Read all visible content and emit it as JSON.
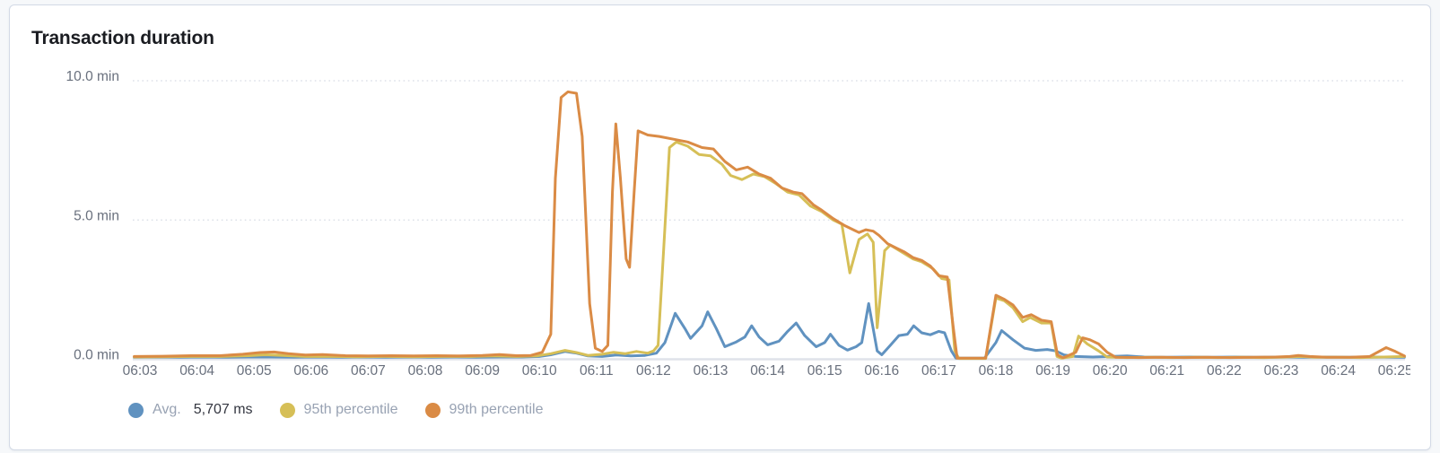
{
  "card": {
    "title": "Transaction duration"
  },
  "legend": {
    "avg_label": "Avg.",
    "avg_value": "5,707 ms",
    "p95_label": "95th percentile",
    "p99_label": "99th percentile"
  },
  "chart_data": {
    "type": "line",
    "title": "Transaction duration",
    "grid": "horizontal dotted gridlines at 5.0 and 10.0 min, solid baseline at 0.0 min",
    "legend_position": "bottom-left",
    "x_axis": {
      "unit": "time (HH:MM)",
      "tick_labels": [
        "06:03",
        "06:04",
        "06:05",
        "06:06",
        "06:07",
        "06:08",
        "06:09",
        "06:10",
        "06:11",
        "06:12",
        "06:13",
        "06:14",
        "06:15",
        "06:16",
        "06:17",
        "06:18",
        "06:19",
        "06:20",
        "06:21",
        "06:22",
        "06:23",
        "06:24",
        "06:25"
      ],
      "last_label_clipped": true
    },
    "y_axis": {
      "unit": "min",
      "tick_values": [
        0,
        5,
        10
      ],
      "tick_labels": [
        "0.0 min",
        "5.0 min",
        "10.0 min"
      ],
      "range": [
        0,
        10
      ]
    },
    "point_time_unit": "minutes after 06:03",
    "series": [
      {
        "name": "Avg.",
        "value_label": "5,707 ms",
        "color": "#6092C0",
        "points": [
          [
            -0.1,
            0.07
          ],
          [
            0.3,
            0.08
          ],
          [
            0.7,
            0.07
          ],
          [
            1.1,
            0.08
          ],
          [
            1.5,
            0.07
          ],
          [
            1.9,
            0.08
          ],
          [
            2.3,
            0.08
          ],
          [
            2.7,
            0.07
          ],
          [
            3.1,
            0.08
          ],
          [
            3.5,
            0.07
          ],
          [
            3.9,
            0.08
          ],
          [
            4.3,
            0.07
          ],
          [
            4.7,
            0.08
          ],
          [
            5.1,
            0.07
          ],
          [
            5.5,
            0.08
          ],
          [
            5.9,
            0.07
          ],
          [
            6.3,
            0.08
          ],
          [
            6.7,
            0.08
          ],
          [
            7.0,
            0.1
          ],
          [
            7.2,
            0.16
          ],
          [
            7.45,
            0.28
          ],
          [
            7.65,
            0.22
          ],
          [
            7.85,
            0.12
          ],
          [
            8.1,
            0.1
          ],
          [
            8.35,
            0.15
          ],
          [
            8.6,
            0.12
          ],
          [
            8.85,
            0.14
          ],
          [
            9.05,
            0.22
          ],
          [
            9.2,
            0.6
          ],
          [
            9.38,
            1.65
          ],
          [
            9.55,
            1.1
          ],
          [
            9.65,
            0.75
          ],
          [
            9.85,
            1.2
          ],
          [
            9.95,
            1.7
          ],
          [
            10.1,
            1.1
          ],
          [
            10.25,
            0.45
          ],
          [
            10.45,
            0.62
          ],
          [
            10.6,
            0.8
          ],
          [
            10.72,
            1.2
          ],
          [
            10.85,
            0.8
          ],
          [
            11.0,
            0.52
          ],
          [
            11.2,
            0.65
          ],
          [
            11.35,
            1.0
          ],
          [
            11.5,
            1.3
          ],
          [
            11.65,
            0.85
          ],
          [
            11.85,
            0.45
          ],
          [
            12.0,
            0.6
          ],
          [
            12.1,
            0.9
          ],
          [
            12.25,
            0.5
          ],
          [
            12.4,
            0.33
          ],
          [
            12.55,
            0.45
          ],
          [
            12.65,
            0.6
          ],
          [
            12.77,
            2.0
          ],
          [
            12.92,
            0.3
          ],
          [
            13.0,
            0.16
          ],
          [
            13.15,
            0.5
          ],
          [
            13.3,
            0.85
          ],
          [
            13.45,
            0.9
          ],
          [
            13.56,
            1.2
          ],
          [
            13.7,
            0.95
          ],
          [
            13.85,
            0.88
          ],
          [
            14.0,
            1.0
          ],
          [
            14.1,
            0.95
          ],
          [
            14.22,
            0.3
          ],
          [
            14.3,
            0.04
          ],
          [
            14.8,
            0.04
          ],
          [
            15.0,
            0.6
          ],
          [
            15.1,
            1.03
          ],
          [
            15.3,
            0.7
          ],
          [
            15.5,
            0.4
          ],
          [
            15.7,
            0.32
          ],
          [
            15.9,
            0.35
          ],
          [
            16.05,
            0.3
          ],
          [
            16.2,
            0.15
          ],
          [
            16.4,
            0.1
          ],
          [
            16.7,
            0.08
          ],
          [
            17.0,
            0.1
          ],
          [
            17.3,
            0.12
          ],
          [
            17.6,
            0.08
          ],
          [
            18.0,
            0.07
          ],
          [
            18.4,
            0.08
          ],
          [
            18.8,
            0.07
          ],
          [
            19.2,
            0.08
          ],
          [
            19.6,
            0.07
          ],
          [
            20.0,
            0.08
          ],
          [
            20.4,
            0.07
          ],
          [
            20.8,
            0.08
          ],
          [
            21.2,
            0.07
          ],
          [
            21.6,
            0.08
          ],
          [
            22.0,
            0.07
          ],
          [
            22.16,
            0.07
          ]
        ]
      },
      {
        "name": "95th percentile",
        "color": "#D6BF57",
        "points": [
          [
            -0.1,
            0.08
          ],
          [
            0.4,
            0.09
          ],
          [
            0.9,
            0.1
          ],
          [
            1.4,
            0.1
          ],
          [
            1.9,
            0.13
          ],
          [
            2.2,
            0.16
          ],
          [
            2.5,
            0.14
          ],
          [
            2.9,
            0.1
          ],
          [
            3.3,
            0.1
          ],
          [
            3.8,
            0.09
          ],
          [
            4.3,
            0.1
          ],
          [
            4.8,
            0.09
          ],
          [
            5.3,
            0.1
          ],
          [
            5.8,
            0.1
          ],
          [
            6.2,
            0.12
          ],
          [
            6.6,
            0.1
          ],
          [
            6.95,
            0.12
          ],
          [
            7.2,
            0.2
          ],
          [
            7.45,
            0.32
          ],
          [
            7.65,
            0.24
          ],
          [
            7.85,
            0.14
          ],
          [
            8.1,
            0.18
          ],
          [
            8.3,
            0.25
          ],
          [
            8.5,
            0.2
          ],
          [
            8.7,
            0.28
          ],
          [
            8.9,
            0.22
          ],
          [
            9.0,
            0.3
          ],
          [
            9.08,
            0.5
          ],
          [
            9.18,
            4.0
          ],
          [
            9.28,
            7.6
          ],
          [
            9.4,
            7.8
          ],
          [
            9.6,
            7.65
          ],
          [
            9.8,
            7.35
          ],
          [
            10.0,
            7.3
          ],
          [
            10.2,
            7.0
          ],
          [
            10.35,
            6.6
          ],
          [
            10.55,
            6.45
          ],
          [
            10.75,
            6.65
          ],
          [
            10.95,
            6.55
          ],
          [
            11.15,
            6.3
          ],
          [
            11.35,
            6.0
          ],
          [
            11.55,
            5.9
          ],
          [
            11.75,
            5.5
          ],
          [
            11.95,
            5.3
          ],
          [
            12.15,
            5.0
          ],
          [
            12.3,
            4.85
          ],
          [
            12.44,
            3.1
          ],
          [
            12.6,
            4.3
          ],
          [
            12.75,
            4.5
          ],
          [
            12.85,
            4.2
          ],
          [
            12.92,
            1.13
          ],
          [
            13.05,
            3.9
          ],
          [
            13.15,
            4.1
          ],
          [
            13.35,
            3.85
          ],
          [
            13.55,
            3.6
          ],
          [
            13.7,
            3.5
          ],
          [
            13.9,
            3.25
          ],
          [
            14.05,
            2.9
          ],
          [
            14.18,
            2.85
          ],
          [
            14.28,
            0.3
          ],
          [
            14.35,
            0.03
          ],
          [
            14.82,
            0.03
          ],
          [
            15.0,
            2.2
          ],
          [
            15.15,
            2.1
          ],
          [
            15.3,
            1.85
          ],
          [
            15.47,
            1.35
          ],
          [
            15.6,
            1.5
          ],
          [
            15.8,
            1.3
          ],
          [
            15.97,
            1.3
          ],
          [
            16.07,
            0.1
          ],
          [
            16.15,
            0.04
          ],
          [
            16.35,
            0.1
          ],
          [
            16.45,
            0.83
          ],
          [
            16.6,
            0.55
          ],
          [
            16.8,
            0.3
          ],
          [
            16.95,
            0.08
          ],
          [
            17.3,
            0.06
          ],
          [
            17.7,
            0.07
          ],
          [
            18.1,
            0.06
          ],
          [
            18.5,
            0.07
          ],
          [
            18.9,
            0.06
          ],
          [
            19.3,
            0.07
          ],
          [
            19.7,
            0.06
          ],
          [
            20.1,
            0.08
          ],
          [
            20.35,
            0.1
          ],
          [
            20.6,
            0.07
          ],
          [
            21.0,
            0.07
          ],
          [
            21.4,
            0.06
          ],
          [
            21.8,
            0.08
          ],
          [
            22.16,
            0.1
          ]
        ]
      },
      {
        "name": "99th percentile",
        "color": "#DA8B45",
        "points": [
          [
            -0.1,
            0.1
          ],
          [
            0.4,
            0.11
          ],
          [
            0.9,
            0.13
          ],
          [
            1.4,
            0.13
          ],
          [
            1.8,
            0.18
          ],
          [
            2.1,
            0.24
          ],
          [
            2.35,
            0.26
          ],
          [
            2.6,
            0.2
          ],
          [
            2.9,
            0.15
          ],
          [
            3.2,
            0.17
          ],
          [
            3.6,
            0.13
          ],
          [
            4.0,
            0.12
          ],
          [
            4.4,
            0.13
          ],
          [
            4.8,
            0.12
          ],
          [
            5.2,
            0.13
          ],
          [
            5.6,
            0.12
          ],
          [
            6.0,
            0.14
          ],
          [
            6.3,
            0.17
          ],
          [
            6.6,
            0.13
          ],
          [
            6.85,
            0.14
          ],
          [
            7.05,
            0.25
          ],
          [
            7.2,
            0.9
          ],
          [
            7.28,
            6.5
          ],
          [
            7.38,
            9.4
          ],
          [
            7.5,
            9.6
          ],
          [
            7.65,
            9.55
          ],
          [
            7.75,
            8.0
          ],
          [
            7.88,
            2.0
          ],
          [
            7.98,
            0.4
          ],
          [
            8.1,
            0.28
          ],
          [
            8.2,
            0.5
          ],
          [
            8.28,
            6.0
          ],
          [
            8.34,
            8.45
          ],
          [
            8.42,
            6.5
          ],
          [
            8.52,
            3.6
          ],
          [
            8.58,
            3.3
          ],
          [
            8.66,
            6.0
          ],
          [
            8.73,
            8.2
          ],
          [
            8.9,
            8.05
          ],
          [
            9.1,
            8.0
          ],
          [
            9.35,
            7.9
          ],
          [
            9.6,
            7.8
          ],
          [
            9.85,
            7.6
          ],
          [
            10.05,
            7.55
          ],
          [
            10.25,
            7.1
          ],
          [
            10.45,
            6.8
          ],
          [
            10.65,
            6.9
          ],
          [
            10.85,
            6.65
          ],
          [
            11.05,
            6.5
          ],
          [
            11.25,
            6.15
          ],
          [
            11.45,
            6.0
          ],
          [
            11.6,
            5.95
          ],
          [
            11.8,
            5.55
          ],
          [
            11.95,
            5.35
          ],
          [
            12.15,
            5.05
          ],
          [
            12.35,
            4.8
          ],
          [
            12.5,
            4.65
          ],
          [
            12.6,
            4.55
          ],
          [
            12.72,
            4.65
          ],
          [
            12.85,
            4.6
          ],
          [
            12.95,
            4.45
          ],
          [
            13.1,
            4.15
          ],
          [
            13.25,
            4.0
          ],
          [
            13.4,
            3.85
          ],
          [
            13.55,
            3.65
          ],
          [
            13.7,
            3.55
          ],
          [
            13.85,
            3.35
          ],
          [
            14.0,
            3.0
          ],
          [
            14.15,
            2.95
          ],
          [
            14.25,
            1.2
          ],
          [
            14.32,
            0.04
          ],
          [
            14.82,
            0.04
          ],
          [
            15.0,
            2.3
          ],
          [
            15.15,
            2.15
          ],
          [
            15.3,
            1.95
          ],
          [
            15.47,
            1.5
          ],
          [
            15.62,
            1.6
          ],
          [
            15.8,
            1.4
          ],
          [
            15.97,
            1.35
          ],
          [
            16.08,
            0.15
          ],
          [
            16.18,
            0.05
          ],
          [
            16.4,
            0.25
          ],
          [
            16.52,
            0.77
          ],
          [
            16.65,
            0.7
          ],
          [
            16.8,
            0.55
          ],
          [
            16.95,
            0.25
          ],
          [
            17.1,
            0.07
          ],
          [
            17.5,
            0.06
          ],
          [
            17.9,
            0.07
          ],
          [
            18.3,
            0.06
          ],
          [
            18.7,
            0.07
          ],
          [
            19.1,
            0.06
          ],
          [
            19.5,
            0.07
          ],
          [
            19.9,
            0.08
          ],
          [
            20.15,
            0.1
          ],
          [
            20.3,
            0.14
          ],
          [
            20.5,
            0.1
          ],
          [
            20.8,
            0.07
          ],
          [
            21.2,
            0.07
          ],
          [
            21.55,
            0.1
          ],
          [
            21.84,
            0.42
          ],
          [
            22.0,
            0.28
          ],
          [
            22.16,
            0.12
          ]
        ]
      }
    ]
  },
  "colors": {
    "avg": "#6092C0",
    "p95": "#D6BF57",
    "p99": "#DA8B45",
    "axis_text": "#69707d",
    "gridline": "#d6dbe4",
    "baseline": "#dfe3ea",
    "card_border": "#d3dae6",
    "page_background": "#f6f8fa"
  }
}
